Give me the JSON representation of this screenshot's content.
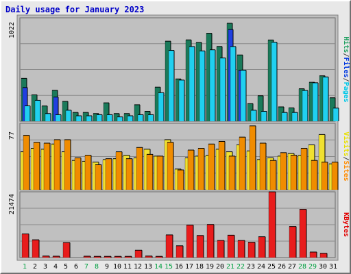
{
  "chart_data": {
    "type": "bar",
    "title": "Daily usage for January 2023",
    "days": [
      "1",
      "2",
      "3",
      "4",
      "5",
      "6",
      "7",
      "8",
      "9",
      "10",
      "11",
      "12",
      "13",
      "14",
      "15",
      "16",
      "17",
      "18",
      "19",
      "20",
      "21",
      "22",
      "23",
      "24",
      "25",
      "26",
      "27",
      "28",
      "29",
      "30",
      "31"
    ],
    "weekend_days": [
      "1",
      "7",
      "8",
      "14",
      "15",
      "21",
      "22",
      "28",
      "29"
    ],
    "panels": [
      {
        "id": "hits-files-pages",
        "ymax_label": "1022",
        "ymax": 1022,
        "legend": [
          "Pages",
          "/",
          "Files",
          "/",
          "Hits"
        ],
        "legend_colors": [
          "#00c8e8",
          "#404040",
          "#0038e0",
          "#404040",
          "#20a060"
        ],
        "series": [
          {
            "name": "Hits",
            "color": "#1a7a5a",
            "values": [
              424,
              261,
              151,
              306,
              196,
              87,
              87,
              76,
              182,
              76,
              76,
              163,
              98,
              337,
              791,
              418,
              804,
              779,
              869,
              739,
              968,
              655,
              174,
              252,
              803,
              142,
              132,
              321,
              385,
              449,
              232
            ]
          },
          {
            "name": "Files",
            "color": "#2040e0",
            "values": [
              333,
              0,
              0,
              239,
              0,
              0,
              0,
              0,
              0,
              0,
              0,
              0,
              0,
              0,
              0,
              0,
              0,
              0,
              0,
              0,
              907,
              505,
              0,
              0,
              0,
              0,
              0,
              0,
              0,
              0,
              0
            ]
          },
          {
            "name": "Pages",
            "color": "#20d0f0",
            "values": [
              152,
              207,
              76,
              65,
              109,
              54,
              54,
              65,
              65,
              43,
              54,
              65,
              65,
              282,
              700,
              407,
              738,
              695,
              706,
              625,
              738,
              505,
              109,
              98,
              781,
              87,
              87,
              304,
              380,
              438,
              130
            ]
          }
        ]
      },
      {
        "id": "visits-sites",
        "ymax_label": "77",
        "ymax": 77,
        "legend": [
          "Sites",
          "/",
          "Visits"
        ],
        "legend_colors": [
          "#ff8c00",
          "#404040",
          "#e8e000"
        ],
        "series": [
          {
            "name": "Visits",
            "color": "#f0e030",
            "values": [
              44,
              48,
              47,
              53,
              44,
              34,
              33,
              32,
              35,
              36,
              40,
              37,
              47,
              39,
              58,
              24,
              37,
              39,
              40,
              47,
              44,
              52,
              45,
              35,
              37,
              39,
              42,
              40,
              52,
              64,
              30
            ]
          },
          {
            "name": "Sites",
            "color": "#f08c00",
            "values": [
              63,
              55,
              54,
              58,
              58,
              37,
              40,
              29,
              36,
              44,
              36,
              49,
              41,
              39,
              55,
              23,
              46,
              48,
              53,
              56,
              39,
              61,
              74,
              54,
              34,
              43,
              40,
              48,
              34,
              32,
              32
            ]
          }
        ]
      },
      {
        "id": "kbytes",
        "ymax_label": "21474",
        "ymax": 21474,
        "legend": [
          "KBytes"
        ],
        "legend_colors": [
          "#e00000"
        ],
        "series": [
          {
            "name": "KBytes",
            "color": "#e81c1c",
            "values": [
              7730,
              5800,
              500,
              450,
              4900,
              0,
              450,
              400,
              400,
              400,
              400,
              2400,
              500,
              400,
              7400,
              3850,
              10600,
              7200,
              10800,
              5600,
              7300,
              5600,
              5000,
              6800,
              21474,
              0,
              10150,
              15750,
              1800,
              1400,
              0
            ]
          }
        ]
      }
    ]
  }
}
